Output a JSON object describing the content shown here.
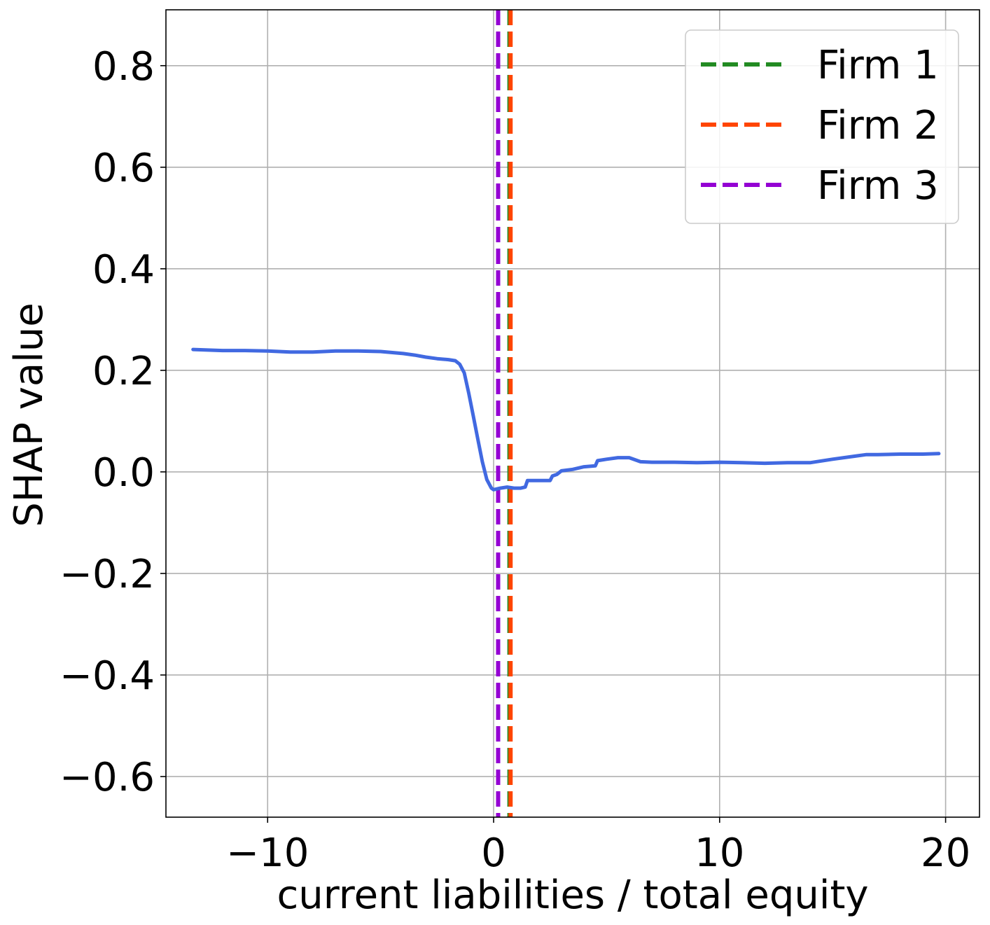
{
  "chart_data": {
    "type": "line",
    "xlabel": "current liabilities / total equity",
    "ylabel": "SHAP value",
    "xlim": [
      -14.5,
      21.5
    ],
    "ylim": [
      -0.68,
      0.91
    ],
    "xticks": [
      -10,
      0,
      10,
      20
    ],
    "xtick_labels": [
      "−10",
      "0",
      "10",
      "20"
    ],
    "yticks": [
      -0.6,
      -0.4,
      -0.2,
      0.0,
      0.2,
      0.4,
      0.6,
      0.8
    ],
    "ytick_labels": [
      "−0.6",
      "−0.4",
      "−0.2",
      "0.0",
      "0.2",
      "0.4",
      "0.6",
      "0.8"
    ],
    "grid": true,
    "legend_position": "top-right",
    "series": [
      {
        "color": "#4169e1",
        "x": [
          -13.3,
          -12.0,
          -11.0,
          -10.0,
          -9.0,
          -8.0,
          -7.0,
          -6.0,
          -5.0,
          -4.0,
          -3.5,
          -3.0,
          -2.5,
          -2.0,
          -1.7,
          -1.5,
          -1.3,
          -1.1,
          -0.9,
          -0.7,
          -0.5,
          -0.3,
          -0.1,
          0.0,
          0.3,
          0.6,
          0.9,
          1.2,
          1.4,
          1.5,
          2.0,
          2.5,
          2.6,
          2.8,
          3.0,
          3.5,
          4.0,
          4.5,
          4.6,
          5.0,
          5.5,
          6.0,
          6.5,
          7.0,
          8.0,
          9.0,
          10.0,
          11.0,
          12.0,
          13.0,
          14.0,
          15.0,
          16.0,
          16.5,
          17.0,
          18.0,
          19.0,
          19.7
        ],
        "y": [
          0.241,
          0.239,
          0.239,
          0.238,
          0.236,
          0.236,
          0.238,
          0.238,
          0.237,
          0.233,
          0.23,
          0.226,
          0.223,
          0.221,
          0.219,
          0.212,
          0.195,
          0.155,
          0.11,
          0.065,
          0.02,
          -0.015,
          -0.032,
          -0.035,
          -0.032,
          -0.03,
          -0.032,
          -0.032,
          -0.03,
          -0.017,
          -0.017,
          -0.017,
          -0.008,
          -0.005,
          0.002,
          0.005,
          0.01,
          0.012,
          0.022,
          0.025,
          0.028,
          0.028,
          0.02,
          0.019,
          0.019,
          0.018,
          0.019,
          0.018,
          0.017,
          0.018,
          0.018,
          0.025,
          0.031,
          0.034,
          0.034,
          0.035,
          0.035,
          0.036
        ]
      }
    ],
    "vlines": [
      {
        "name": "Firm 1",
        "x": 0.7,
        "color": "#228b22"
      },
      {
        "name": "Firm 2",
        "x": 0.75,
        "color": "#ff4500"
      },
      {
        "name": "Firm 3",
        "x": 0.2,
        "color": "#9400d3"
      }
    ]
  }
}
